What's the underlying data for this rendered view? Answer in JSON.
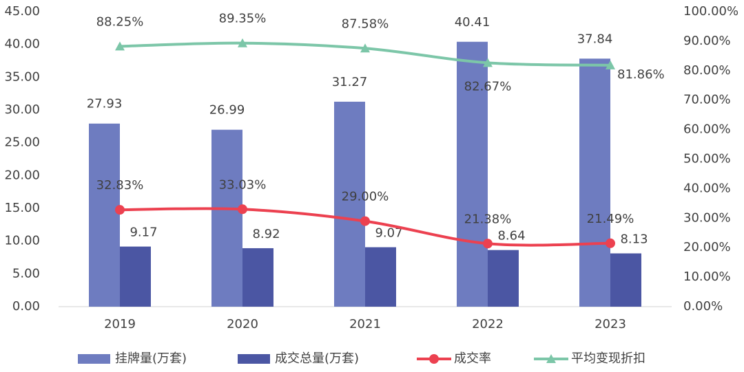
{
  "chart_data": {
    "type": "bar-line",
    "categories": [
      "2019",
      "2020",
      "2021",
      "2022",
      "2023"
    ],
    "series": [
      {
        "name": "挂牌量(万套)",
        "type": "bar",
        "color": "#6e7cc0",
        "values": [
          27.93,
          26.99,
          31.27,
          40.41,
          37.84
        ]
      },
      {
        "name": "成交总量(万套)",
        "type": "bar",
        "color": "#4b56a3",
        "values": [
          9.17,
          8.92,
          9.07,
          8.64,
          8.13
        ]
      },
      {
        "name": "成交率",
        "type": "line",
        "axis": "y2",
        "color": "#ec4150",
        "values": [
          32.83,
          33.03,
          29.0,
          21.38,
          21.49
        ],
        "value_labels": [
          "32.83%",
          "33.03%",
          "29.00%",
          "21.38%",
          "21.49%"
        ]
      },
      {
        "name": "平均变现折扣",
        "type": "line",
        "axis": "y2",
        "color": "#7cc6a8",
        "values": [
          88.25,
          89.35,
          87.58,
          82.67,
          81.86
        ],
        "value_labels": [
          "88.25%",
          "89.35%",
          "87.58%",
          "82.67%",
          "81.86%"
        ]
      }
    ],
    "ylim": [
      0,
      45
    ],
    "yticks": [
      {
        "value": 0,
        "label": "0.00"
      },
      {
        "value": 5,
        "label": "5.00"
      },
      {
        "value": 10,
        "label": "10.00"
      },
      {
        "value": 15,
        "label": "15.00"
      },
      {
        "value": 20,
        "label": "20.00"
      },
      {
        "value": 25,
        "label": "25.00"
      },
      {
        "value": 30,
        "label": "30.00"
      },
      {
        "value": 35,
        "label": "35.00"
      },
      {
        "value": 40,
        "label": "40.00"
      },
      {
        "value": 45,
        "label": "45.00"
      }
    ],
    "y2lim": [
      0,
      100
    ],
    "y2ticks": [
      {
        "value": 0,
        "label": "0.00%"
      },
      {
        "value": 10,
        "label": "10.00%"
      },
      {
        "value": 20,
        "label": "20.00%"
      },
      {
        "value": 30,
        "label": "30.00%"
      },
      {
        "value": 40,
        "label": "40.00%"
      },
      {
        "value": 50,
        "label": "50.00%"
      },
      {
        "value": 60,
        "label": "60.00%"
      },
      {
        "value": 70,
        "label": "70.00%"
      },
      {
        "value": 80,
        "label": "80.00%"
      },
      {
        "value": 90,
        "label": "90.00%"
      },
      {
        "value": 100,
        "label": "100.00%"
      }
    ],
    "grid": false,
    "legend": "bottom"
  }
}
